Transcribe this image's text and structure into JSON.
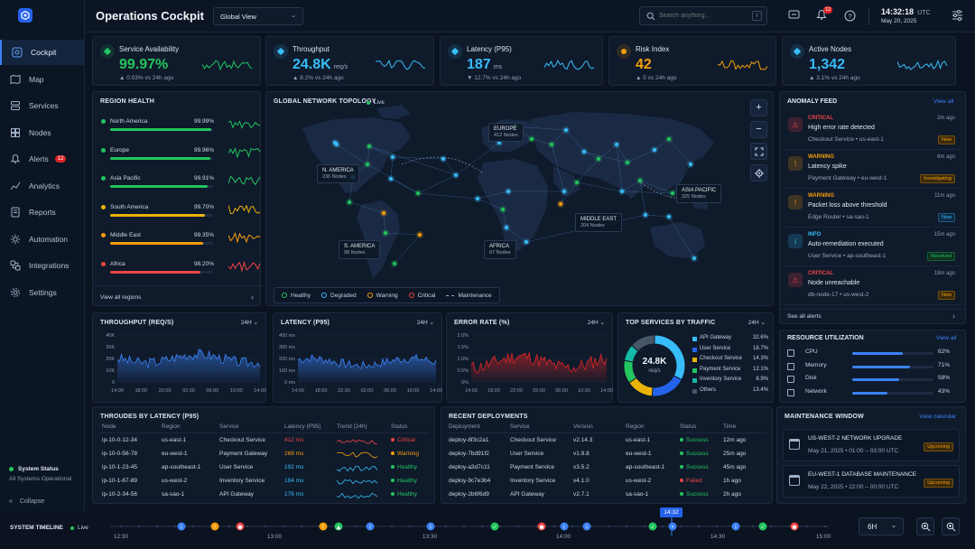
{
  "app": {
    "title": "Operations Cockpit",
    "view_select": "Global View"
  },
  "search": {
    "placeholder": "Search anything...",
    "shortcut": "/"
  },
  "notifications": {
    "count": "12"
  },
  "clock": {
    "time": "14:32:18",
    "tz": "UTC",
    "date": "May 20, 2025"
  },
  "sidebar": {
    "items": [
      {
        "label": "Cockpit",
        "icon": "cockpit-icon"
      },
      {
        "label": "Map",
        "icon": "map-icon"
      },
      {
        "label": "Services",
        "icon": "services-icon"
      },
      {
        "label": "Nodes",
        "icon": "nodes-icon"
      },
      {
        "label": "Alerts",
        "icon": "alert-icon",
        "badge": "12"
      },
      {
        "label": "Analytics",
        "icon": "analytics-icon"
      },
      {
        "label": "Reports",
        "icon": "reports-icon"
      },
      {
        "label": "Automation",
        "icon": "automation-icon"
      },
      {
        "label": "Integrations",
        "icon": "integrations-icon"
      },
      {
        "label": "Settings",
        "icon": "gear-icon"
      }
    ],
    "status_title": "System Status",
    "status_text": "All Systems Operational",
    "collapse": "Collapse"
  },
  "kpis": [
    {
      "label": "Service Availability",
      "value": "99.97%",
      "unit": "",
      "delta": "▲ 0.03% vs 24h ago",
      "color": "#22c55e"
    },
    {
      "label": "Throughput",
      "value": "24.8K",
      "unit": "req/s",
      "delta": "▲ 8.2% vs 24h ago",
      "color": "#38bdf8"
    },
    {
      "label": "Latency (P95)",
      "value": "187",
      "unit": "ms",
      "delta": "▼ 12.7% vs 24h ago",
      "color": "#38bdf8"
    },
    {
      "label": "Risk Index",
      "value": "42",
      "unit": "",
      "delta": "▲ 5 vs 24h ago",
      "color": "#f59e0b"
    },
    {
      "label": "Active Nodes",
      "value": "1,342",
      "unit": "",
      "delta": "▲ 3.1% vs 24h ago",
      "color": "#38bdf8"
    }
  ],
  "region_health": {
    "title": "REGION HEALTH",
    "rows": [
      {
        "name": "North America",
        "pct": "99.99%",
        "level": 0.98,
        "color": "#22c55e"
      },
      {
        "name": "Europe",
        "pct": "99.96%",
        "level": 0.97,
        "color": "#22c55e"
      },
      {
        "name": "Asia Pacific",
        "pct": "99.91%",
        "level": 0.95,
        "color": "#22c55e"
      },
      {
        "name": "South America",
        "pct": "99.70%",
        "level": 0.92,
        "color": "#eab308"
      },
      {
        "name": "Middle East",
        "pct": "99.35%",
        "level": 0.9,
        "color": "#f59e0b"
      },
      {
        "name": "Africa",
        "pct": "98.20%",
        "level": 0.88,
        "color": "#ef4444"
      }
    ],
    "footer": "View all regions"
  },
  "topology": {
    "title": "GLOBAL NETWORK TOPOLOGY",
    "live": "Live",
    "labels": [
      {
        "name": "EUROPE",
        "nodes": "412 Nodes"
      },
      {
        "name": "N. AMERICA",
        "nodes": "236 Nodes"
      },
      {
        "name": "ASIA PACIFIC",
        "nodes": "325 Nodes"
      },
      {
        "name": "MIDDLE EAST",
        "nodes": "204 Nodes"
      },
      {
        "name": "S. AMERICA",
        "nodes": "98 Nodes"
      },
      {
        "name": "AFRICA",
        "nodes": "67 Nodes"
      }
    ],
    "legend": [
      "Healthy",
      "Degraded",
      "Warning",
      "Critical",
      "Maintenance"
    ]
  },
  "anomaly_feed": {
    "title": "ANOMALY FEED",
    "view_all": "View all",
    "items": [
      {
        "sev": "CRITICAL",
        "title": "High error rate detected",
        "sub": "Checkout Service  •  us-east-1",
        "time": "2m ago",
        "tag": "New"
      },
      {
        "sev": "WARNING",
        "title": "Latency spike",
        "sub": "Payment Gateway  •  eu-west-1",
        "time": "6m ago",
        "tag": "Investigating"
      },
      {
        "sev": "WARNING",
        "title": "Packet loss above threshold",
        "sub": "Edge Router  •  sa-sao-1",
        "time": "11m ago",
        "tag": "New"
      },
      {
        "sev": "INFO",
        "title": "Auto-remediation executed",
        "sub": "User Service  •  ap-southeast-1",
        "time": "15m ago",
        "tag": "Resolved"
      },
      {
        "sev": "CRITICAL",
        "title": "Node unreachable",
        "sub": "db-node-17  •  us-west-2",
        "time": "18m ago",
        "tag": "New"
      }
    ],
    "footer": "See all alerts"
  },
  "charts": {
    "throughput": {
      "title": "THROUGHPUT (REQ/S)",
      "range": "24H",
      "yticks": [
        "40K",
        "30K",
        "20K",
        "10K",
        "0"
      ],
      "xticks": [
        "14:00",
        "18:00",
        "22:00",
        "02:00",
        "06:00",
        "10:00",
        "14:00"
      ]
    },
    "latency": {
      "title": "LATENCY (P95)",
      "range": "24H",
      "yticks": [
        "400 ms",
        "300 ms",
        "200 ms",
        "100 ms",
        "0 ms"
      ],
      "xticks": [
        "14:00",
        "18:00",
        "22:00",
        "02:00",
        "06:00",
        "10:00",
        "14:00"
      ]
    },
    "error_rate": {
      "title": "ERROR RATE (%)",
      "range": "24H",
      "yticks": [
        "2.0%",
        "1.5%",
        "1.0%",
        "0.5%",
        "0%"
      ],
      "xticks": [
        "14:00",
        "18:00",
        "22:00",
        "02:00",
        "06:00",
        "10:00",
        "14:00"
      ]
    }
  },
  "top_services": {
    "title": "TOP SERVICES BY TRAFFIC",
    "range": "24H",
    "center_value": "24.8K",
    "center_unit": "req/s",
    "items": [
      {
        "name": "API Gateway",
        "pct": "32.6%",
        "value": 32.6,
        "color": "#38bdf8"
      },
      {
        "name": "User Service",
        "pct": "18.7%",
        "value": 18.7,
        "color": "#2563eb"
      },
      {
        "name": "Checkout Service",
        "pct": "14.3%",
        "value": 14.3,
        "color": "#eab308"
      },
      {
        "name": "Payment Service",
        "pct": "12.1%",
        "value": 12.1,
        "color": "#22c55e"
      },
      {
        "name": "Inventory Service",
        "pct": "8.9%",
        "value": 8.9,
        "color": "#14b8a6"
      },
      {
        "name": "Others",
        "pct": "13.4%",
        "value": 13.4,
        "color": "#475569"
      }
    ]
  },
  "resource_utilization": {
    "title": "RESOURCE UTILIZATION",
    "view_all": "View all",
    "items": [
      {
        "name": "CPU",
        "pct": "62%",
        "level": 0.62
      },
      {
        "name": "Memory",
        "pct": "71%",
        "level": 0.71
      },
      {
        "name": "Disk",
        "pct": "58%",
        "level": 0.58
      },
      {
        "name": "Network",
        "pct": "43%",
        "level": 0.43
      }
    ]
  },
  "throughs_by_latency": {
    "title": "THROUDES BY LATENCY (P95)",
    "headers": [
      "Node",
      "Region",
      "Service",
      "Latency (P95)",
      "Trend (24h)",
      "Status"
    ],
    "rows": [
      {
        "node": "ip-10-0-12-34",
        "region": "us-east-1",
        "service": "Checkout Service",
        "latency": "412 ms",
        "status": "Critical",
        "color": "#ef4444"
      },
      {
        "node": "ip-10-0-56-78",
        "region": "eu-west-1",
        "service": "Payment Gateway",
        "latency": "268 ms",
        "status": "Warning",
        "color": "#f59e0b"
      },
      {
        "node": "ip-10-1-23-45",
        "region": "ap-southeast-1",
        "service": "User Service",
        "latency": "192 ms",
        "status": "Healthy",
        "color": "#38bdf8"
      },
      {
        "node": "ip-10-1-67-89",
        "region": "us-west-2",
        "service": "Inventory Service",
        "latency": "184 ms",
        "status": "Healthy",
        "color": "#38bdf8"
      },
      {
        "node": "ip-10-2-34-56",
        "region": "sa-sao-1",
        "service": "API Gateway",
        "latency": "176 ms",
        "status": "Healthy",
        "color": "#38bdf8"
      }
    ]
  },
  "recent_deployments": {
    "title": "RECENT DEPLOYMENTS",
    "headers": [
      "Deployment",
      "Service",
      "Version",
      "Region",
      "Status",
      "Time"
    ],
    "rows": [
      {
        "id": "deploy-8f3c2a1",
        "service": "Checkout Service",
        "version": "v2.14.3",
        "region": "us-east-1",
        "status": "Success",
        "time": "12m ago"
      },
      {
        "id": "deploy-7bd91f2",
        "service": "User Service",
        "version": "v1.9.8",
        "region": "eu-west-1",
        "status": "Success",
        "time": "25m ago"
      },
      {
        "id": "deploy-a3d7c11",
        "service": "Payment Service",
        "version": "v3.5.2",
        "region": "ap-southeast-1",
        "status": "Success",
        "time": "45m ago"
      },
      {
        "id": "deploy-9c7e3b4",
        "service": "Inventory Service",
        "version": "v4.1.0",
        "region": "us-west-2",
        "status": "Failed",
        "time": "1h ago"
      },
      {
        "id": "deploy-2b6f6d9",
        "service": "API Gateway",
        "version": "v2.7.1",
        "region": "sa-sao-1",
        "status": "Success",
        "time": "2h ago"
      }
    ]
  },
  "maintenance": {
    "title": "MAINTENANCE WINDOW",
    "view_calendar": "View calendar",
    "items": [
      {
        "title": "US-WEST-2 NETWORK UPGRADE",
        "when": "May 21, 2025  •  01:00 – 03:00 UTC",
        "tag": "Upcoming"
      },
      {
        "title": "EU-WEST-1 DATABASE MAINTENANCE",
        "when": "May 22, 2025  •  22:00 – 00:00 UTC",
        "tag": "Upcoming"
      }
    ]
  },
  "timeline": {
    "title": "SYSTEM TIMELINE",
    "live": "Live",
    "ticks": [
      "12:30",
      "13:00",
      "13:30",
      "14:00",
      "14:30",
      "15:00"
    ],
    "now": "14:32",
    "range": "6H"
  }
}
